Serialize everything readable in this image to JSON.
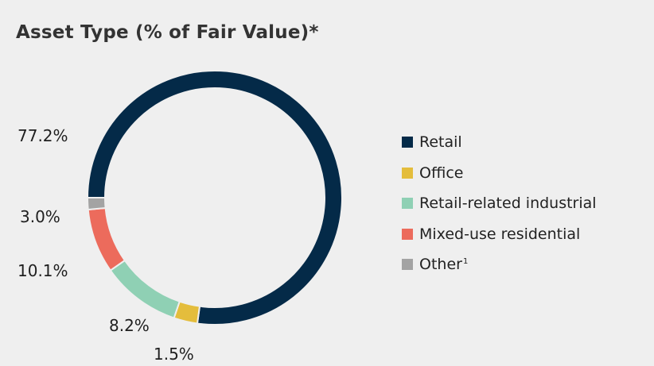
{
  "title": "Asset Type (% of Fair Value)*",
  "chart_data": {
    "type": "pie",
    "title": "Asset Type (% of Fair Value)*",
    "series": [
      {
        "name": "Retail",
        "value": 77.2,
        "label": "77.2%",
        "color": "#042a48"
      },
      {
        "name": "Office",
        "value": 3.0,
        "label": "3.0%",
        "color": "#e4bd3c"
      },
      {
        "name": "Retail-related industrial",
        "value": 10.1,
        "label": "10.1%",
        "color": "#8fd0b4"
      },
      {
        "name": "Mixed-use residential",
        "value": 8.2,
        "label": "8.2%",
        "color": "#ec6b5c"
      },
      {
        "name": "Other",
        "footnote": "1",
        "value": 1.5,
        "label": "1.5%",
        "color": "#a3a3a3"
      }
    ]
  }
}
